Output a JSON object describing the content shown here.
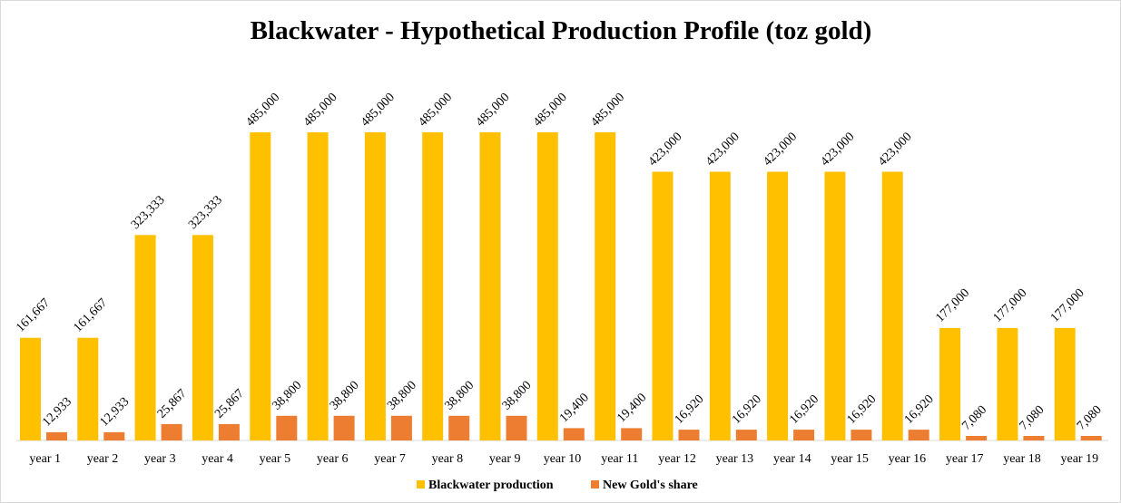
{
  "chart_data": {
    "type": "bar",
    "title": "Blackwater - Hypothetical Production Profile (toz gold)",
    "xlabel": "",
    "ylabel": "",
    "ylim": [
      0,
      500000
    ],
    "grid": false,
    "legend_position": "bottom",
    "categories": [
      "year 1",
      "year 2",
      "year 3",
      "year 4",
      "year 5",
      "year 6",
      "year 7",
      "year 8",
      "year 9",
      "year 10",
      "year 11",
      "year 12",
      "year 13",
      "year 14",
      "year 15",
      "year 16",
      "year 17",
      "year 18",
      "year 19"
    ],
    "series": [
      {
        "name": "Blackwater production",
        "color": "#FFC000",
        "values": [
          161667,
          161667,
          323333,
          323333,
          485000,
          485000,
          485000,
          485000,
          485000,
          485000,
          485000,
          423000,
          423000,
          423000,
          423000,
          423000,
          177000,
          177000,
          177000
        ],
        "labels": [
          "161,667",
          "161,667",
          "323,333",
          "323,333",
          "485,000",
          "485,000",
          "485,000",
          "485,000",
          "485,000",
          "485,000",
          "485,000",
          "423,000",
          "423,000",
          "423,000",
          "423,000",
          "423,000",
          "177,000",
          "177,000",
          "177,000"
        ]
      },
      {
        "name": "New Gold's share",
        "color": "#ED7D31",
        "values": [
          12933,
          12933,
          25867,
          25867,
          38800,
          38800,
          38800,
          38800,
          38800,
          19400,
          19400,
          16920,
          16920,
          16920,
          16920,
          16920,
          7080,
          7080,
          7080
        ],
        "labels": [
          "12,933",
          "12,933",
          "25,867",
          "25,867",
          "38,800",
          "38,800",
          "38,800",
          "38,800",
          "38,800",
          "19,400",
          "19,400",
          "16,920",
          "16,920",
          "16,920",
          "16,920",
          "16,920",
          "7,080",
          "7,080",
          "7,080"
        ]
      }
    ]
  }
}
